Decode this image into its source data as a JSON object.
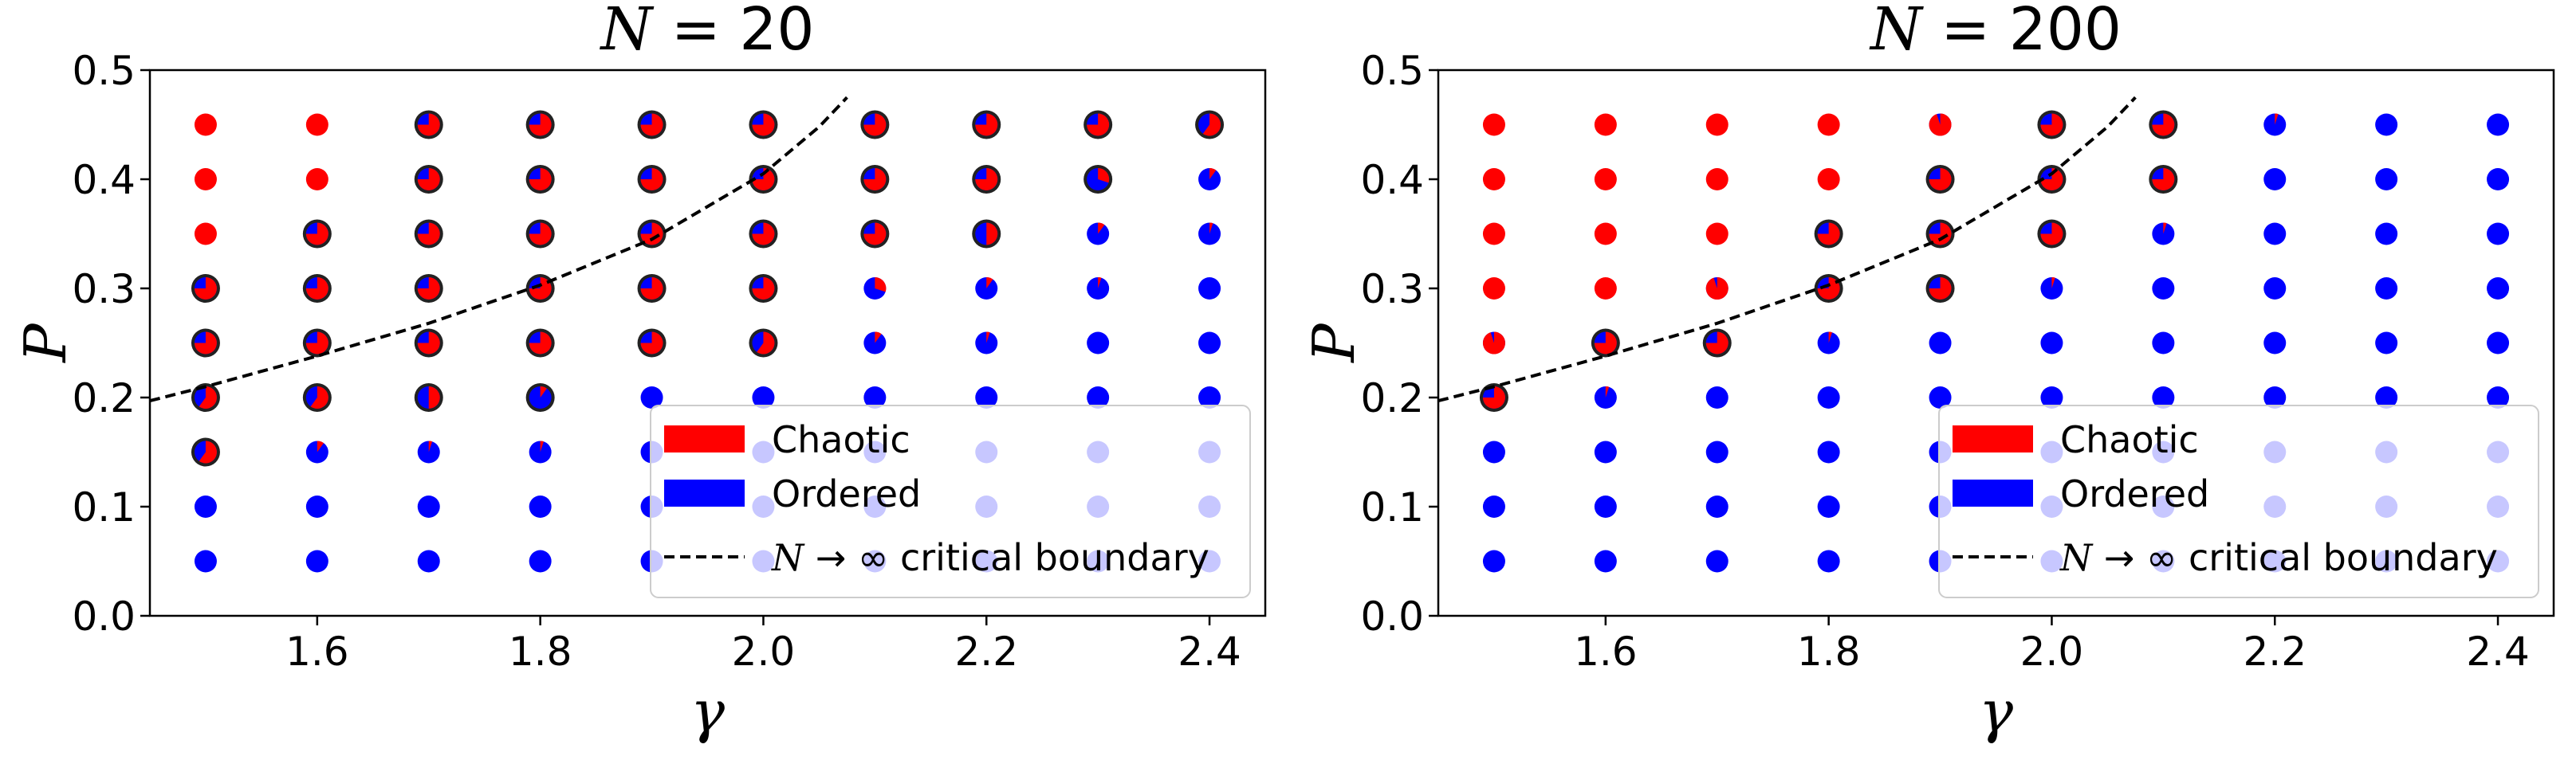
{
  "chart_data": [
    {
      "type": "scatter",
      "title_prefix": "N",
      "title_value": "= 20",
      "xlabel": "γ",
      "ylabel": "P",
      "xlim": [
        1.45,
        2.45
      ],
      "ylim": [
        0.0,
        0.5
      ],
      "xticks": [
        "1.6",
        "1.8",
        "2.0",
        "2.2",
        "2.4"
      ],
      "xtick_values": [
        1.6,
        1.8,
        2.0,
        2.2,
        2.4
      ],
      "yticks": [
        "0.0",
        "0.1",
        "0.2",
        "0.3",
        "0.4",
        "0.5"
      ],
      "ytick_values": [
        0.0,
        0.1,
        0.2,
        0.3,
        0.4,
        0.5
      ],
      "gamma": [
        1.5,
        1.6,
        1.7,
        1.8,
        1.9,
        2.0,
        2.1,
        2.2,
        2.3,
        2.4
      ],
      "P": [
        0.05,
        0.1,
        0.15,
        0.2,
        0.25,
        0.3,
        0.35,
        0.4,
        0.45
      ],
      "chaotic_fraction_rows_P_descending": [
        [
          1.0,
          1.0,
          0.75,
          0.75,
          0.75,
          0.75,
          0.75,
          0.75,
          0.75,
          0.6
        ],
        [
          1.0,
          1.0,
          0.75,
          0.75,
          0.75,
          0.75,
          0.75,
          0.75,
          0.3,
          0.1
        ],
        [
          1.0,
          0.75,
          0.75,
          0.75,
          0.75,
          0.75,
          0.75,
          0.5,
          0.1,
          0.05
        ],
        [
          0.75,
          0.75,
          0.75,
          0.75,
          0.75,
          0.75,
          0.3,
          0.1,
          0.05,
          0.0
        ],
        [
          0.75,
          0.75,
          0.75,
          0.75,
          0.75,
          0.6,
          0.1,
          0.05,
          0.0,
          0.0
        ],
        [
          0.6,
          0.6,
          0.5,
          0.1,
          0.0,
          0.0,
          0.0,
          0.0,
          0.0,
          0.0
        ],
        [
          0.6,
          0.1,
          0.05,
          0.05,
          0.0,
          0.0,
          0.0,
          0.0,
          0.0,
          0.0
        ],
        [
          0.0,
          0.0,
          0.0,
          0.0,
          0.0,
          0.0,
          0.0,
          0.0,
          0.0,
          0.0
        ],
        [
          0.0,
          0.0,
          0.0,
          0.0,
          0.0,
          0.0,
          0.0,
          0.0,
          0.0,
          0.0
        ]
      ],
      "critical_rows_P_descending": [
        [
          false,
          false,
          true,
          true,
          true,
          true,
          true,
          true,
          true,
          true
        ],
        [
          false,
          false,
          true,
          true,
          true,
          true,
          true,
          true,
          true,
          false
        ],
        [
          false,
          true,
          true,
          true,
          true,
          true,
          true,
          true,
          false,
          false
        ],
        [
          true,
          true,
          true,
          true,
          true,
          true,
          false,
          false,
          false,
          false
        ],
        [
          true,
          true,
          true,
          true,
          true,
          true,
          false,
          false,
          false,
          false
        ],
        [
          true,
          true,
          true,
          true,
          false,
          false,
          false,
          false,
          false,
          false
        ],
        [
          true,
          false,
          false,
          false,
          false,
          false,
          false,
          false,
          false,
          false
        ],
        [
          false,
          false,
          false,
          false,
          false,
          false,
          false,
          false,
          false,
          false
        ],
        [
          false,
          false,
          false,
          false,
          false,
          false,
          false,
          false,
          false,
          false
        ]
      ],
      "boundary": {
        "gamma": [
          1.45,
          1.5,
          1.6,
          1.7,
          1.8,
          1.9,
          2.0,
          2.05,
          2.075
        ],
        "P": [
          0.197,
          0.21,
          0.238,
          0.268,
          0.303,
          0.345,
          0.405,
          0.448,
          0.475
        ]
      },
      "legend": {
        "position": "lower-right",
        "entries": [
          "Chaotic",
          "Ordered"
        ],
        "boundary_prefix": "N",
        "boundary_suffix": "→ ∞ critical boundary"
      },
      "colors": {
        "chaotic": "#ff0000",
        "ordered": "#0000ff",
        "edge": "#222222",
        "boundary": "#000000"
      }
    },
    {
      "type": "scatter",
      "title_prefix": "N",
      "title_value": "= 200",
      "xlabel": "γ",
      "ylabel": "P",
      "xlim": [
        1.45,
        2.45
      ],
      "ylim": [
        0.0,
        0.5
      ],
      "xticks": [
        "1.6",
        "1.8",
        "2.0",
        "2.2",
        "2.4"
      ],
      "xtick_values": [
        1.6,
        1.8,
        2.0,
        2.2,
        2.4
      ],
      "yticks": [
        "0.0",
        "0.1",
        "0.2",
        "0.3",
        "0.4",
        "0.5"
      ],
      "ytick_values": [
        0.0,
        0.1,
        0.2,
        0.3,
        0.4,
        0.5
      ],
      "gamma": [
        1.5,
        1.6,
        1.7,
        1.8,
        1.9,
        2.0,
        2.1,
        2.2,
        2.3,
        2.4
      ],
      "P": [
        0.05,
        0.1,
        0.15,
        0.2,
        0.25,
        0.3,
        0.35,
        0.4,
        0.45
      ],
      "chaotic_fraction_rows_P_descending": [
        [
          1.0,
          1.0,
          1.0,
          1.0,
          0.95,
          0.75,
          0.75,
          0.05,
          0.0,
          0.0
        ],
        [
          1.0,
          1.0,
          1.0,
          1.0,
          0.75,
          0.75,
          0.75,
          0.0,
          0.0,
          0.0
        ],
        [
          1.0,
          1.0,
          1.0,
          0.75,
          0.75,
          0.75,
          0.05,
          0.0,
          0.0,
          0.0
        ],
        [
          1.0,
          1.0,
          0.95,
          0.75,
          0.75,
          0.05,
          0.0,
          0.0,
          0.0,
          0.0
        ],
        [
          0.95,
          0.75,
          0.75,
          0.05,
          0.0,
          0.0,
          0.0,
          0.0,
          0.0,
          0.0
        ],
        [
          0.75,
          0.05,
          0.0,
          0.0,
          0.0,
          0.0,
          0.0,
          0.0,
          0.0,
          0.0
        ],
        [
          0.0,
          0.0,
          0.0,
          0.0,
          0.0,
          0.0,
          0.0,
          0.0,
          0.0,
          0.0
        ],
        [
          0.0,
          0.0,
          0.0,
          0.0,
          0.0,
          0.0,
          0.0,
          0.0,
          0.0,
          0.0
        ],
        [
          0.0,
          0.0,
          0.0,
          0.0,
          0.0,
          0.0,
          0.0,
          0.0,
          0.0,
          0.0
        ]
      ],
      "critical_rows_P_descending": [
        [
          false,
          false,
          false,
          false,
          false,
          true,
          true,
          false,
          false,
          false
        ],
        [
          false,
          false,
          false,
          false,
          true,
          true,
          true,
          false,
          false,
          false
        ],
        [
          false,
          false,
          false,
          true,
          true,
          true,
          false,
          false,
          false,
          false
        ],
        [
          false,
          false,
          false,
          true,
          true,
          false,
          false,
          false,
          false,
          false
        ],
        [
          false,
          true,
          true,
          false,
          false,
          false,
          false,
          false,
          false,
          false
        ],
        [
          true,
          false,
          false,
          false,
          false,
          false,
          false,
          false,
          false,
          false
        ],
        [
          false,
          false,
          false,
          false,
          false,
          false,
          false,
          false,
          false,
          false
        ],
        [
          false,
          false,
          false,
          false,
          false,
          false,
          false,
          false,
          false,
          false
        ],
        [
          false,
          false,
          false,
          false,
          false,
          false,
          false,
          false,
          false,
          false
        ]
      ],
      "boundary": {
        "gamma": [
          1.45,
          1.5,
          1.6,
          1.7,
          1.8,
          1.9,
          2.0,
          2.05,
          2.075
        ],
        "P": [
          0.197,
          0.21,
          0.238,
          0.268,
          0.303,
          0.345,
          0.405,
          0.448,
          0.475
        ]
      },
      "legend": {
        "position": "lower-right",
        "entries": [
          "Chaotic",
          "Ordered"
        ],
        "boundary_prefix": "N",
        "boundary_suffix": "→ ∞ critical boundary"
      },
      "colors": {
        "chaotic": "#ff0000",
        "ordered": "#0000ff",
        "edge": "#222222",
        "boundary": "#000000"
      }
    }
  ]
}
